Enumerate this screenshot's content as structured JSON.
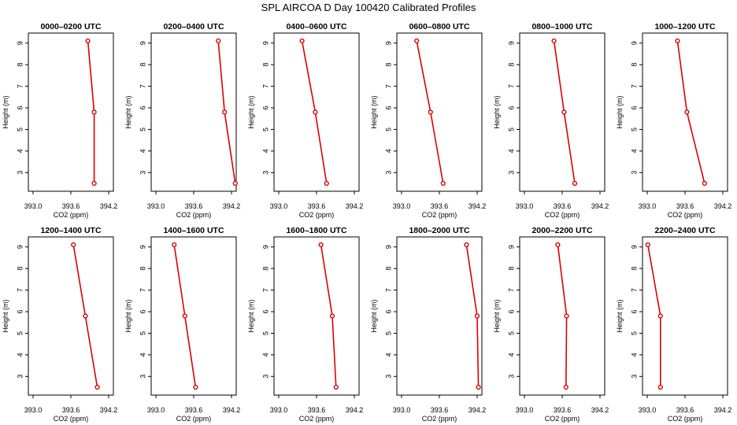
{
  "figure": {
    "title": "SPL AIRCOA D  Day 100420  Calibrated Profiles"
  },
  "colors": {
    "line": "#dd0000",
    "marker": "#dd0000",
    "axis": "#000000"
  },
  "chart_data": [
    {
      "type": "line",
      "title": "0000–0200 UTC",
      "xlabel": "CO2 (ppm)",
      "ylabel": "Height (m)",
      "xlim": [
        393.0,
        394.2
      ],
      "ylim": [
        2.5,
        9.1
      ],
      "xticks": [
        "393.0",
        "393.6",
        "394.2"
      ],
      "yticks": [
        "3",
        "4",
        "5",
        "6",
        "7",
        "8",
        "9"
      ],
      "grid": false,
      "series": [
        {
          "x": [
            393.87,
            393.97,
            393.97
          ],
          "y": [
            9.1,
            5.8,
            2.5
          ]
        }
      ]
    },
    {
      "type": "line",
      "title": "0200–0400 UTC",
      "xlabel": "CO2 (ppm)",
      "ylabel": "Height (m)",
      "xlim": [
        393.0,
        394.2
      ],
      "ylim": [
        2.5,
        9.1
      ],
      "xticks": [
        "393.0",
        "393.6",
        "394.2"
      ],
      "yticks": [
        "3",
        "4",
        "5",
        "6",
        "7",
        "8",
        "9"
      ],
      "grid": false,
      "series": [
        {
          "x": [
            393.99,
            394.09,
            394.26
          ],
          "y": [
            9.1,
            5.8,
            2.5
          ]
        }
      ]
    },
    {
      "type": "line",
      "title": "0400–0600 UTC",
      "xlabel": "CO2 (ppm)",
      "ylabel": "Height (m)",
      "xlim": [
        393.0,
        394.2
      ],
      "ylim": [
        2.5,
        9.1
      ],
      "xticks": [
        "393.0",
        "393.6",
        "394.2"
      ],
      "yticks": [
        "3",
        "4",
        "5",
        "6",
        "7",
        "8",
        "9"
      ],
      "grid": false,
      "series": [
        {
          "x": [
            393.37,
            393.58,
            393.76
          ],
          "y": [
            9.1,
            5.8,
            2.5
          ]
        }
      ]
    },
    {
      "type": "line",
      "title": "0600–0800 UTC",
      "xlabel": "CO2 (ppm)",
      "ylabel": "Height (m)",
      "xlim": [
        393.0,
        394.2
      ],
      "ylim": [
        2.5,
        9.1
      ],
      "xticks": [
        "393.0",
        "393.6",
        "394.2"
      ],
      "yticks": [
        "3",
        "4",
        "5",
        "6",
        "7",
        "8",
        "9"
      ],
      "grid": false,
      "series": [
        {
          "x": [
            393.24,
            393.46,
            393.66
          ],
          "y": [
            9.1,
            5.8,
            2.5
          ]
        }
      ]
    },
    {
      "type": "line",
      "title": "0800–1000 UTC",
      "xlabel": "CO2 (ppm)",
      "ylabel": "Height (m)",
      "xlim": [
        393.0,
        394.2
      ],
      "ylim": [
        2.5,
        9.1
      ],
      "xticks": [
        "393.0",
        "393.6",
        "394.2"
      ],
      "yticks": [
        "3",
        "4",
        "5",
        "6",
        "7",
        "8",
        "9"
      ],
      "grid": false,
      "series": [
        {
          "x": [
            393.47,
            393.63,
            393.8
          ],
          "y": [
            9.1,
            5.8,
            2.5
          ]
        }
      ]
    },
    {
      "type": "line",
      "title": "1000–1200 UTC",
      "xlabel": "CO2 (ppm)",
      "ylabel": "Height (m)",
      "xlim": [
        393.0,
        394.2
      ],
      "ylim": [
        2.5,
        9.1
      ],
      "xticks": [
        "393.0",
        "393.6",
        "394.2"
      ],
      "yticks": [
        "3",
        "4",
        "5",
        "6",
        "7",
        "8",
        "9"
      ],
      "grid": false,
      "series": [
        {
          "x": [
            393.48,
            393.63,
            393.91
          ],
          "y": [
            9.1,
            5.8,
            2.5
          ]
        }
      ]
    },
    {
      "type": "line",
      "title": "1200–1400 UTC",
      "xlabel": "CO2 (ppm)",
      "ylabel": "Height (m)",
      "xlim": [
        393.0,
        394.2
      ],
      "ylim": [
        2.5,
        9.1
      ],
      "xticks": [
        "393.0",
        "393.6",
        "394.2"
      ],
      "yticks": [
        "3",
        "4",
        "5",
        "6",
        "7",
        "8",
        "9"
      ],
      "grid": false,
      "series": [
        {
          "x": [
            393.64,
            393.83,
            394.02
          ],
          "y": [
            9.1,
            5.8,
            2.5
          ]
        }
      ]
    },
    {
      "type": "line",
      "title": "1400–1600 UTC",
      "xlabel": "CO2 (ppm)",
      "ylabel": "Height (m)",
      "xlim": [
        393.0,
        394.2
      ],
      "ylim": [
        2.5,
        9.1
      ],
      "xticks": [
        "393.0",
        "393.6",
        "394.2"
      ],
      "yticks": [
        "3",
        "4",
        "5",
        "6",
        "7",
        "8",
        "9"
      ],
      "grid": false,
      "series": [
        {
          "x": [
            393.29,
            393.46,
            393.63
          ],
          "y": [
            9.1,
            5.8,
            2.5
          ]
        }
      ]
    },
    {
      "type": "line",
      "title": "1600–1800 UTC",
      "xlabel": "CO2 (ppm)",
      "ylabel": "Height (m)",
      "xlim": [
        393.0,
        394.2
      ],
      "ylim": [
        2.5,
        9.1
      ],
      "xticks": [
        "393.0",
        "393.6",
        "394.2"
      ],
      "yticks": [
        "3",
        "4",
        "5",
        "6",
        "7",
        "8",
        "9"
      ],
      "grid": false,
      "series": [
        {
          "x": [
            393.67,
            393.85,
            393.91
          ],
          "y": [
            9.1,
            5.8,
            2.5
          ]
        }
      ]
    },
    {
      "type": "line",
      "title": "1800–2000 UTC",
      "xlabel": "CO2 (ppm)",
      "ylabel": "Height (m)",
      "xlim": [
        393.0,
        394.2
      ],
      "ylim": [
        2.5,
        9.1
      ],
      "xticks": [
        "393.0",
        "393.6",
        "394.2"
      ],
      "yticks": [
        "3",
        "4",
        "5",
        "6",
        "7",
        "8",
        "9"
      ],
      "grid": false,
      "series": [
        {
          "x": [
            394.03,
            394.2,
            394.22
          ],
          "y": [
            9.1,
            5.8,
            2.5
          ]
        }
      ]
    },
    {
      "type": "line",
      "title": "2000–2200 UTC",
      "xlabel": "CO2 (ppm)",
      "ylabel": "Height (m)",
      "xlim": [
        393.0,
        394.2
      ],
      "ylim": [
        2.5,
        9.1
      ],
      "xticks": [
        "393.0",
        "393.6",
        "394.2"
      ],
      "yticks": [
        "3",
        "4",
        "5",
        "6",
        "7",
        "8",
        "9"
      ],
      "grid": false,
      "series": [
        {
          "x": [
            393.53,
            393.67,
            393.66
          ],
          "y": [
            9.1,
            5.8,
            2.5
          ]
        }
      ]
    },
    {
      "type": "line",
      "title": "2200–2400 UTC",
      "xlabel": "CO2 (ppm)",
      "ylabel": "Height (m)",
      "xlim": [
        393.0,
        394.2
      ],
      "ylim": [
        2.5,
        9.1
      ],
      "xticks": [
        "393.0",
        "393.6",
        "394.2"
      ],
      "yticks": [
        "3",
        "4",
        "5",
        "6",
        "7",
        "8",
        "9"
      ],
      "grid": false,
      "series": [
        {
          "x": [
            393.01,
            393.21,
            393.21
          ],
          "y": [
            9.1,
            5.8,
            2.5
          ]
        }
      ]
    }
  ]
}
